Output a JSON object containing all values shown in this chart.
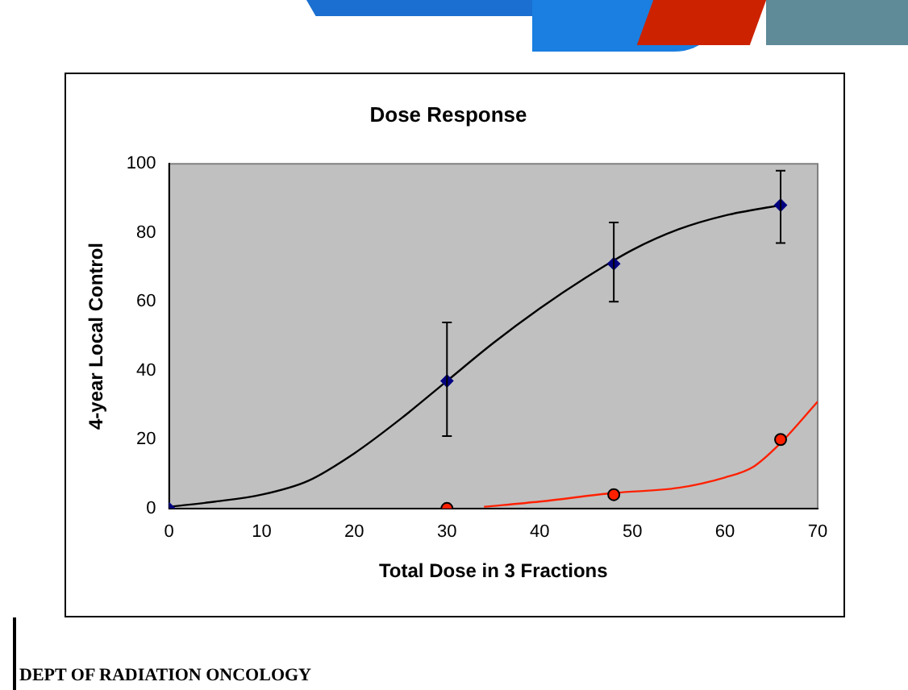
{
  "chart_data": {
    "type": "scatter",
    "title": "Dose Response",
    "xlabel": "Total Dose in 3 Fractions",
    "ylabel": "4-year Local Control",
    "xlim": [
      0,
      70
    ],
    "xticks": [
      0,
      10,
      20,
      30,
      40,
      50,
      60,
      70
    ],
    "ylim": [
      0,
      100
    ],
    "yticks": [
      0,
      20,
      40,
      60,
      80,
      100
    ],
    "grid": false,
    "legend": false,
    "series": [
      {
        "type": "scatter",
        "color": "#000080",
        "marker": "diamond",
        "x": [
          0,
          30,
          48,
          66
        ],
        "values": [
          0,
          37,
          71,
          88
        ],
        "errors": [
          null,
          [
            21,
            54
          ],
          [
            60,
            83
          ],
          [
            77,
            98
          ]
        ]
      },
      {
        "type": "scatter",
        "color": "#ff2000",
        "marker": "circle",
        "x": [
          30,
          48,
          66
        ],
        "values": [
          0,
          4,
          20
        ]
      },
      {
        "type": "line",
        "color": "#000000",
        "marker": "none",
        "x": [
          0,
          5,
          10,
          15,
          20,
          25,
          30,
          35,
          40,
          45,
          50,
          55,
          60,
          66
        ],
        "values": [
          0.5,
          2,
          4,
          8,
          16,
          26,
          37,
          48,
          58,
          67,
          75,
          81,
          85,
          88
        ]
      },
      {
        "type": "line",
        "color": "#ff2000",
        "marker": "none",
        "x": [
          34,
          40,
          48,
          55,
          60,
          63,
          66,
          70
        ],
        "values": [
          0.5,
          2,
          4.5,
          6,
          9,
          12,
          19,
          31
        ]
      }
    ],
    "annotations": [
      "DEPT OF RADIATION ONCOLOGY"
    ]
  }
}
